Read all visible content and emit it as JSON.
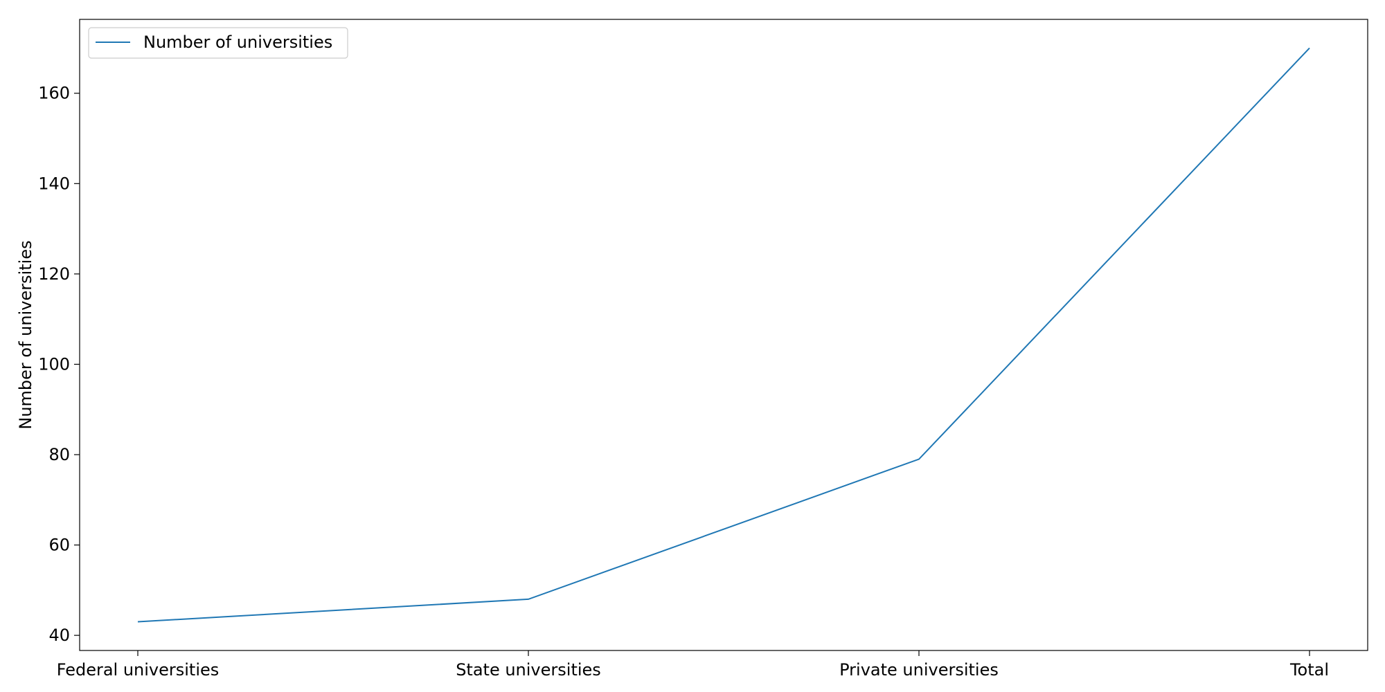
{
  "chart_data": {
    "type": "line",
    "title": "",
    "xlabel": "",
    "ylabel": "Number of universities",
    "categories": [
      "Federal universities",
      "State universities",
      "Private universities",
      "Total"
    ],
    "series": [
      {
        "name": "Number of universities",
        "values": [
          43,
          48,
          79,
          170
        ],
        "color": "#1f77b4"
      }
    ],
    "ylim": [
      36.65,
      176.35
    ],
    "yticks": [
      40,
      60,
      80,
      100,
      120,
      140,
      160
    ],
    "grid": false,
    "legend_position": "top-left"
  }
}
